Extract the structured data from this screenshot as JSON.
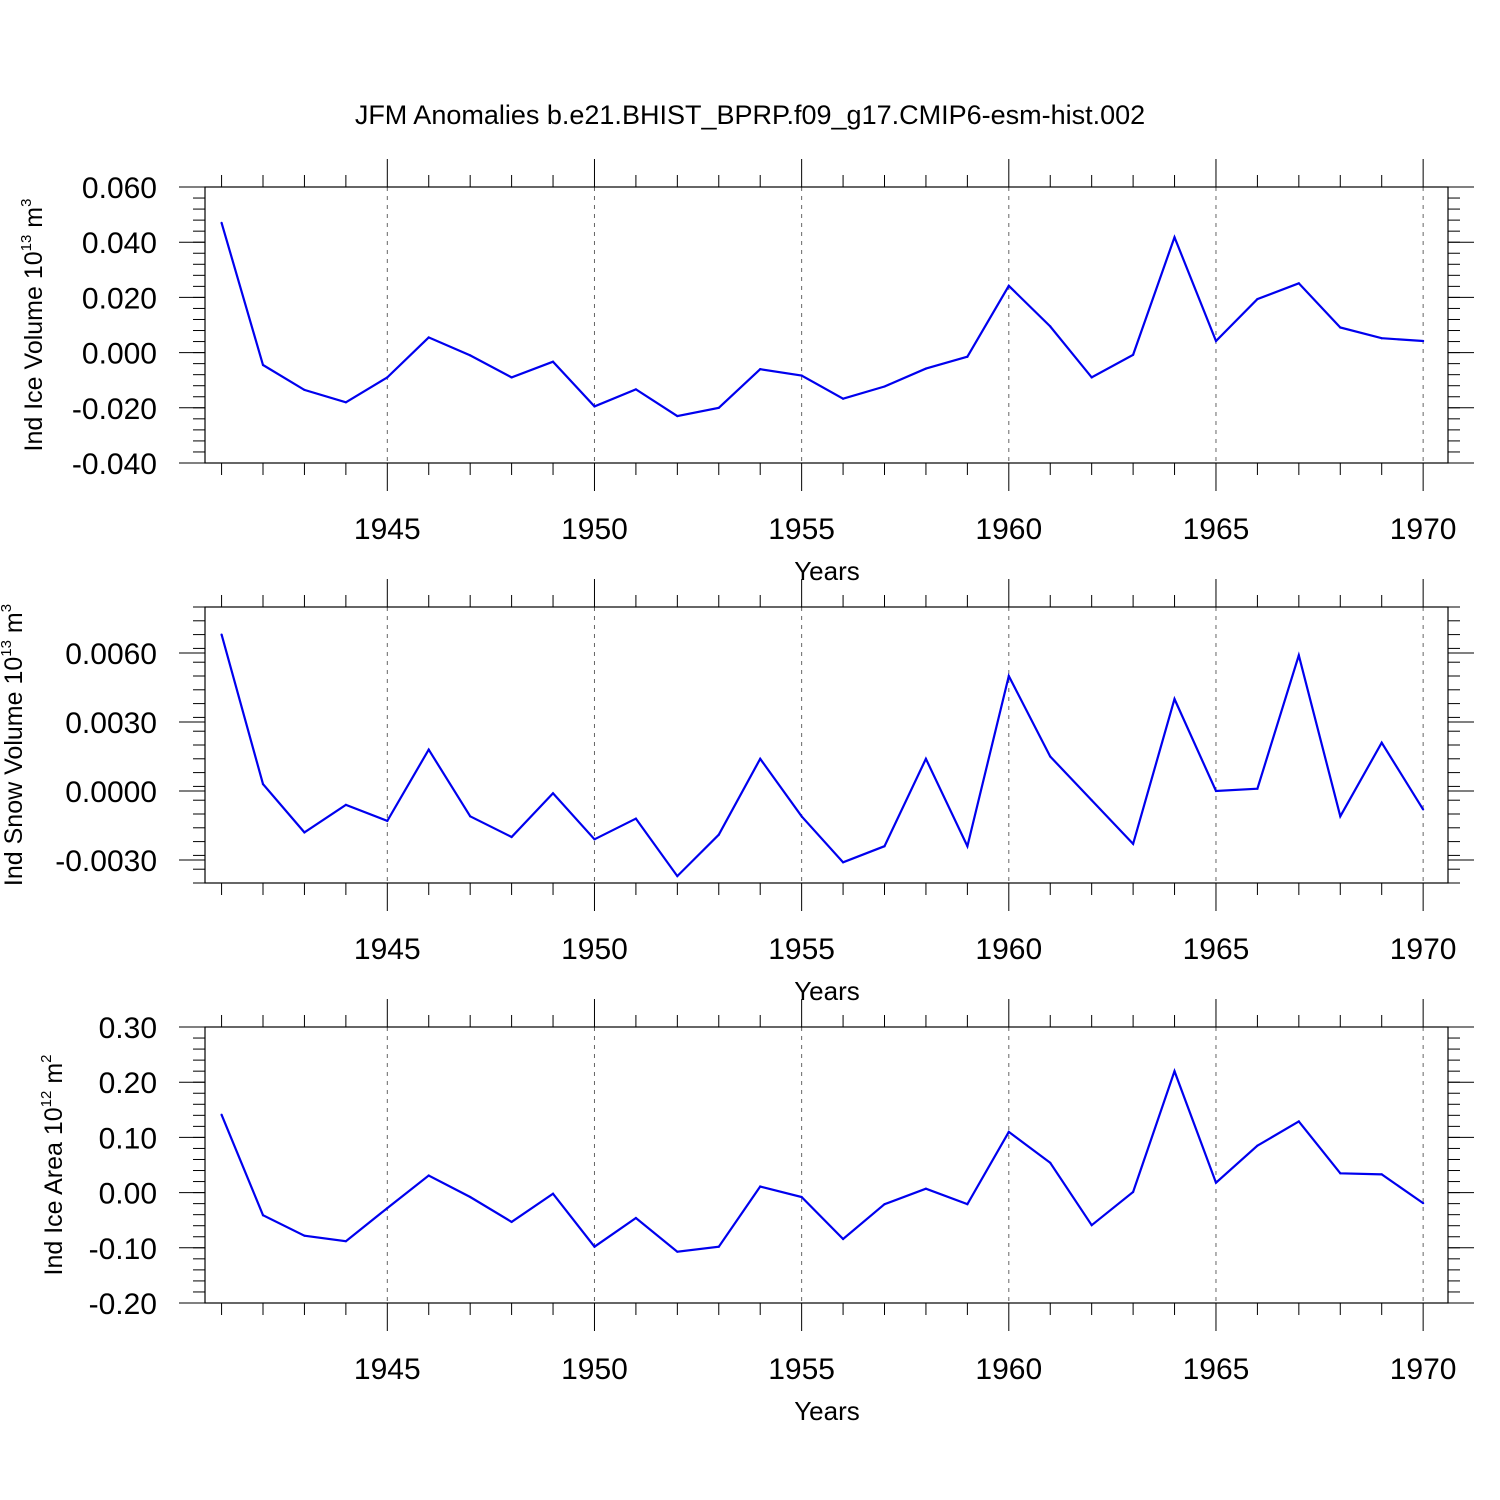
{
  "title": "JFM Anomalies b.e21.BHIST_BPRP.f09_g17.CMIP6-esm-hist.002",
  "colors": {
    "line": "#0000ee",
    "axis": "#000000",
    "grid": "#666666"
  },
  "chart_data": [
    {
      "type": "line",
      "ylabel": "Ind Ice Volume 10",
      "ylabel_exp": "13",
      "ylabel_unit": " m",
      "ylabel_unit_exp": "3",
      "xlabel": "Years",
      "xlim": [
        1940.6,
        1970.6
      ],
      "ylim": [
        -0.04,
        0.06
      ],
      "yticks": [
        -0.04,
        -0.02,
        0.0,
        0.02,
        0.04,
        0.06
      ],
      "ytick_labels": [
        "-0.040",
        "-0.020",
        "0.000",
        "0.020",
        "0.040",
        "0.060"
      ],
      "x": [
        1941,
        1942,
        1943,
        1944,
        1945,
        1946,
        1947,
        1948,
        1949,
        1950,
        1951,
        1952,
        1953,
        1954,
        1955,
        1956,
        1957,
        1958,
        1959,
        1960,
        1961,
        1962,
        1963,
        1964,
        1965,
        1966,
        1967,
        1968,
        1969,
        1970
      ],
      "values": [
        0.047,
        -0.0045,
        -0.0135,
        -0.018,
        -0.009,
        0.0055,
        -0.001,
        -0.009,
        -0.0033,
        -0.0195,
        -0.0133,
        -0.023,
        -0.02,
        -0.006,
        -0.0083,
        -0.0167,
        -0.0123,
        -0.0058,
        -0.0015,
        0.0242,
        0.0095,
        -0.009,
        -0.0008,
        0.0418,
        0.0042,
        0.0194,
        0.0251,
        0.0091,
        0.0052,
        0.0042
      ]
    },
    {
      "type": "line",
      "ylabel": "Ind Snow Volume 10",
      "ylabel_exp": "13",
      "ylabel_unit": " m",
      "ylabel_unit_exp": "3",
      "xlabel": "Years",
      "xlim": [
        1940.6,
        1970.6
      ],
      "ylim": [
        -0.004,
        0.008
      ],
      "yticks": [
        -0.003,
        0.0,
        0.003,
        0.006
      ],
      "ytick_labels": [
        "-0.0030",
        "0.0000",
        "0.0030",
        "0.0060"
      ],
      "x": [
        1941,
        1942,
        1943,
        1944,
        1945,
        1946,
        1947,
        1948,
        1949,
        1950,
        1951,
        1952,
        1953,
        1954,
        1955,
        1956,
        1957,
        1958,
        1959,
        1960,
        1961,
        1962,
        1963,
        1964,
        1965,
        1966,
        1967,
        1968,
        1969,
        1970
      ],
      "values": [
        0.0068,
        0.0003,
        -0.0018,
        -0.0006,
        -0.0013,
        0.0018,
        -0.0011,
        -0.002,
        -0.0001,
        -0.0021,
        -0.0012,
        -0.0037,
        -0.0019,
        0.0014,
        -0.0011,
        -0.0031,
        -0.0024,
        0.0014,
        -0.0024,
        0.005,
        0.0015,
        -0.0004,
        -0.0023,
        0.004,
        0.0,
        0.0001,
        0.0059,
        -0.0011,
        0.0021,
        -0.0008
      ]
    },
    {
      "type": "line",
      "ylabel": "Ind Ice Area 10",
      "ylabel_exp": "12",
      "ylabel_unit": " m",
      "ylabel_unit_exp": "2",
      "xlabel": "Years",
      "xlim": [
        1940.6,
        1970.6
      ],
      "ylim": [
        -0.2,
        0.3
      ],
      "yticks": [
        -0.2,
        -0.1,
        0.0,
        0.1,
        0.2,
        0.3
      ],
      "ytick_labels": [
        "-0.20",
        "-0.10",
        "0.00",
        "0.10",
        "0.20",
        "0.30"
      ],
      "x": [
        1941,
        1942,
        1943,
        1944,
        1945,
        1946,
        1947,
        1948,
        1949,
        1950,
        1951,
        1952,
        1953,
        1954,
        1955,
        1956,
        1957,
        1958,
        1959,
        1960,
        1961,
        1962,
        1963,
        1964,
        1965,
        1966,
        1967,
        1968,
        1969,
        1970
      ],
      "values": [
        0.141,
        -0.041,
        -0.078,
        -0.088,
        -0.028,
        0.031,
        -0.008,
        -0.053,
        -0.002,
        -0.098,
        -0.046,
        -0.107,
        -0.098,
        0.011,
        -0.008,
        -0.084,
        -0.021,
        0.007,
        -0.021,
        0.11,
        0.054,
        -0.059,
        0.001,
        0.22,
        0.018,
        0.085,
        0.129,
        0.035,
        0.033,
        -0.019
      ]
    }
  ],
  "x_major_ticks": [
    1945,
    1950,
    1955,
    1960,
    1965,
    1970
  ],
  "x_tick_labels": [
    "1945",
    "1950",
    "1955",
    "1960",
    "1965",
    "1970"
  ]
}
